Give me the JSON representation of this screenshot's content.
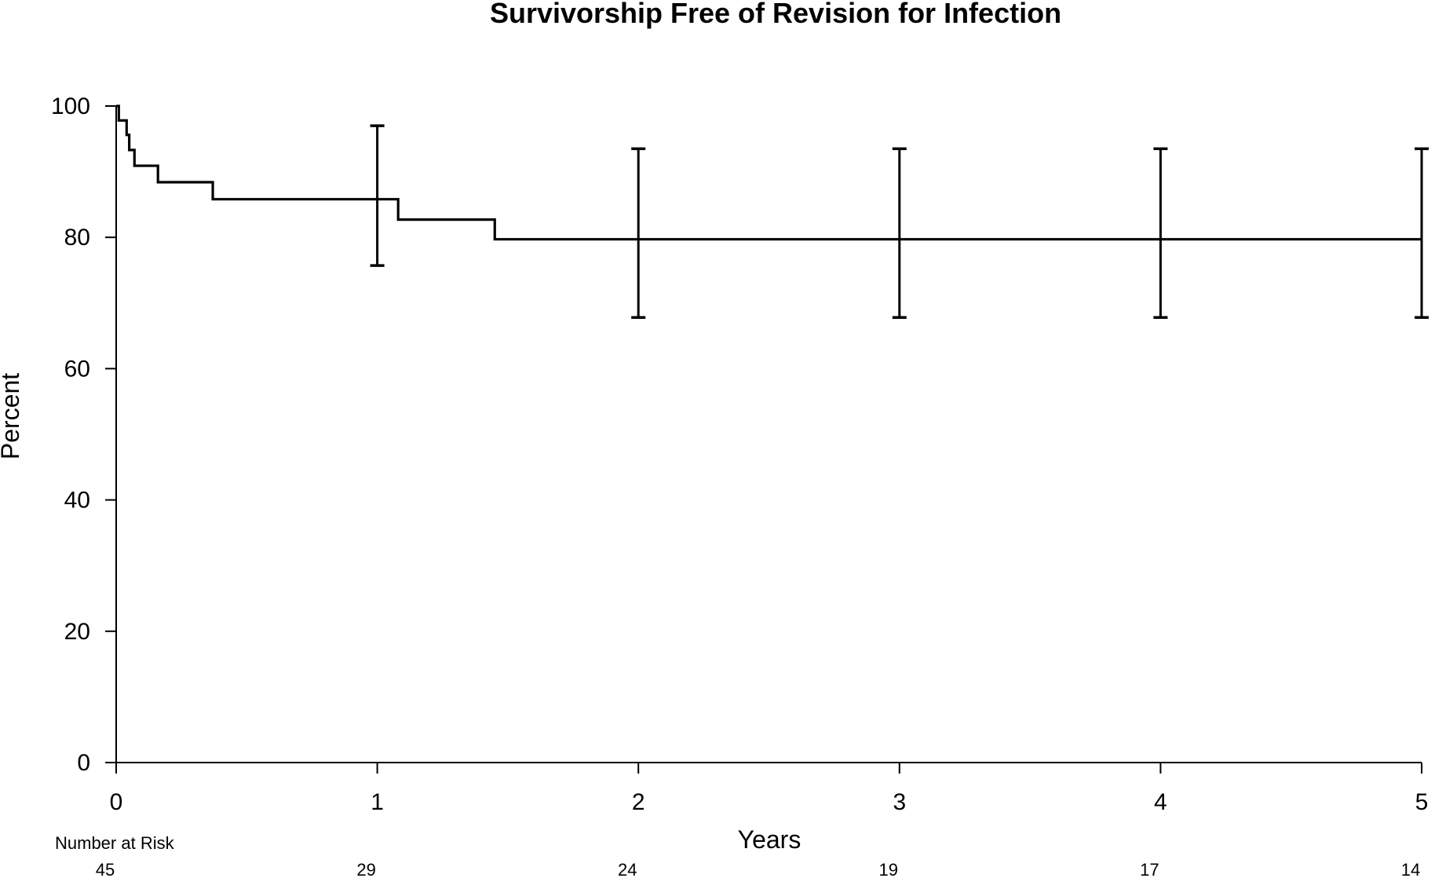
{
  "chart_data": {
    "type": "line",
    "title": "Survivorship Free of Revision for Infection",
    "xlabel": "Years",
    "ylabel": "Percent",
    "xlim": [
      0,
      5
    ],
    "ylim": [
      0,
      100
    ],
    "x_ticks": [
      "0",
      "1",
      "2",
      "3",
      "4",
      "5"
    ],
    "y_ticks": [
      "0",
      "20",
      "40",
      "60",
      "80",
      "100"
    ],
    "grid": false,
    "series": [
      {
        "name": "Survivorship",
        "step": true,
        "x": [
          0,
          0.01,
          0.04,
          0.05,
          0.07,
          0.16,
          0.37,
          1.08,
          1.45,
          5.0
        ],
        "y": [
          100,
          97.8,
          95.6,
          93.3,
          90.9,
          88.4,
          85.8,
          82.7,
          79.7,
          79.7
        ]
      }
    ],
    "error_bars": [
      {
        "x": 1,
        "lower": 75.7,
        "upper": 97.0
      },
      {
        "x": 2,
        "lower": 67.8,
        "upper": 93.5
      },
      {
        "x": 3,
        "lower": 67.8,
        "upper": 93.5
      },
      {
        "x": 4,
        "lower": 67.8,
        "upper": 93.5
      },
      {
        "x": 5,
        "lower": 67.8,
        "upper": 93.5
      }
    ],
    "number_at_risk": {
      "label": "Number at Risk",
      "x": [
        0,
        1,
        2,
        3,
        4,
        5
      ],
      "values": [
        "45",
        "29",
        "24",
        "19",
        "17",
        "14"
      ]
    }
  }
}
